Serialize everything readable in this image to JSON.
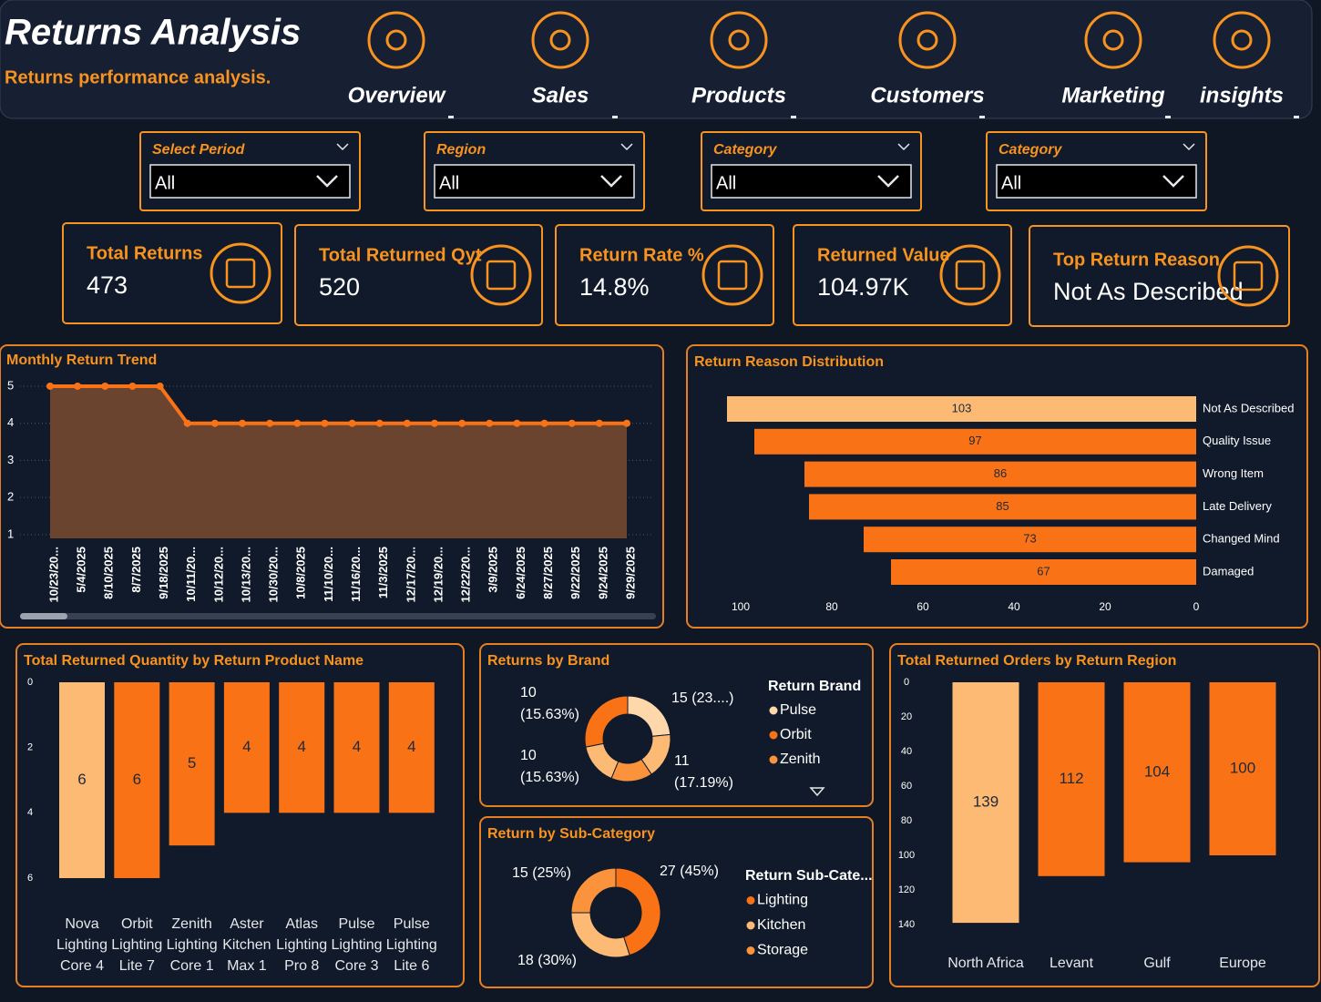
{
  "header": {
    "title": "Returns Analysis",
    "subtitle": "Returns performance analysis."
  },
  "nav": [
    "Overview",
    "Sales",
    "Products",
    "Customers",
    "Marketing",
    "insights"
  ],
  "filters": [
    {
      "label": "Select Period",
      "value": "All"
    },
    {
      "label": "Region",
      "value": "All"
    },
    {
      "label": "Category",
      "value": "All"
    },
    {
      "label": "Category",
      "value": "All"
    }
  ],
  "kpis": [
    {
      "label": "Total Returns",
      "value": "473"
    },
    {
      "label": "Total Returned Qyt",
      "value": "520"
    },
    {
      "label": "Return Rate %",
      "value": "14.8%"
    },
    {
      "label": "Returned Value",
      "value": "104.97K"
    },
    {
      "label": "Top Return Reason",
      "value": "Not As Described"
    }
  ],
  "chart_data": [
    {
      "type": "line",
      "title": "Monthly Return Trend",
      "categories": [
        "10/23/20...",
        "5/4/2025",
        "8/10/2025",
        "8/7/2025",
        "9/18/2025",
        "10/11/20...",
        "10/12/20...",
        "10/13/20...",
        "10/30/20...",
        "10/8/2025",
        "11/10/20...",
        "11/16/20...",
        "11/3/2025",
        "12/17/20...",
        "12/19/20...",
        "12/22/20...",
        "3/9/2025",
        "6/24/2025",
        "8/27/2025",
        "9/22/2025",
        "9/24/2025",
        "9/29/2025"
      ],
      "values": [
        5,
        5,
        5,
        5,
        5,
        4,
        4,
        4,
        4,
        4,
        4,
        4,
        4,
        4,
        4,
        4,
        4,
        4,
        4,
        4,
        4,
        4
      ],
      "color": "#f97316",
      "area_color": "#6b4430",
      "ylim": [
        0.9,
        5.2
      ],
      "yticks": [
        1,
        2,
        3,
        4,
        5
      ],
      "grid": true
    },
    {
      "type": "hbar",
      "title": "Return Reason Distribution",
      "categories": [
        "Not As Described",
        "Quality Issue",
        "Wrong Item",
        "Late Delivery",
        "Changed Mind",
        "Damaged"
      ],
      "values": [
        103,
        97,
        86,
        85,
        73,
        67
      ],
      "colors": [
        "#fdba74",
        "#f97316",
        "#f97316",
        "#f97316",
        "#f97316",
        "#f97316"
      ],
      "xlim": [
        0,
        103
      ],
      "xticks": [
        0,
        20,
        40,
        60,
        80,
        100
      ],
      "x_reversed": true
    },
    {
      "type": "bar",
      "title": "Total Returned Quantity by Return Product Name",
      "categories": [
        "Nova Lighting Core 4",
        "Orbit Lighting Lite 7",
        "Zenith Lighting Core 1",
        "Aster Kitchen Max 1",
        "Atlas Lighting Pro 8",
        "Pulse Lighting Core 3",
        "Pulse Lighting Lite 6"
      ],
      "values": [
        6,
        6,
        5,
        4,
        4,
        4,
        4
      ],
      "colors": [
        "#fdba74",
        "#f97316",
        "#f97316",
        "#f97316",
        "#f97316",
        "#f97316",
        "#f97316"
      ],
      "ylim": [
        0,
        6
      ],
      "yticks": [
        0,
        2,
        4,
        6
      ],
      "y_reversed": true
    },
    {
      "type": "donut",
      "title": "Returns by Brand",
      "values": [
        15,
        11,
        10,
        10,
        18
      ],
      "value_labels": [
        "15 (23....)",
        "11 (17.19%)",
        "10 (15.63%)",
        "10 (15.63%)",
        null
      ],
      "colors": [
        "#fed7aa",
        "#fdba74",
        "#fb923c",
        "#fdba74",
        "#f97316"
      ],
      "legend": {
        "title": "Return Brand",
        "items": [
          {
            "name": "Pulse",
            "color": "#fed7aa"
          },
          {
            "name": "Orbit",
            "color": "#f97316"
          },
          {
            "name": "Zenith",
            "color": "#fb923c"
          }
        ]
      }
    },
    {
      "type": "donut",
      "title": "Return by Sub-Category",
      "values": [
        27,
        18,
        15
      ],
      "value_labels": [
        "27 (45%)",
        "18 (30%)",
        "15 (25%)"
      ],
      "colors": [
        "#f97316",
        "#fdba74",
        "#fb923c"
      ],
      "legend": {
        "title": "Return Sub-Cate...",
        "items": [
          {
            "name": "Lighting",
            "color": "#f97316"
          },
          {
            "name": "Kitchen",
            "color": "#fdba74"
          },
          {
            "name": "Storage",
            "color": "#fb923c"
          }
        ]
      }
    },
    {
      "type": "bar",
      "title": "Total Returned Orders by Return Region",
      "categories": [
        "North Africa",
        "Levant",
        "Gulf",
        "Europe"
      ],
      "values": [
        139,
        112,
        104,
        100
      ],
      "colors": [
        "#fdba74",
        "#f97316",
        "#f97316",
        "#f97316"
      ],
      "ylim": [
        0,
        140
      ],
      "yticks": [
        0,
        20,
        40,
        60,
        80,
        100,
        120,
        140
      ],
      "y_reversed": true
    }
  ]
}
